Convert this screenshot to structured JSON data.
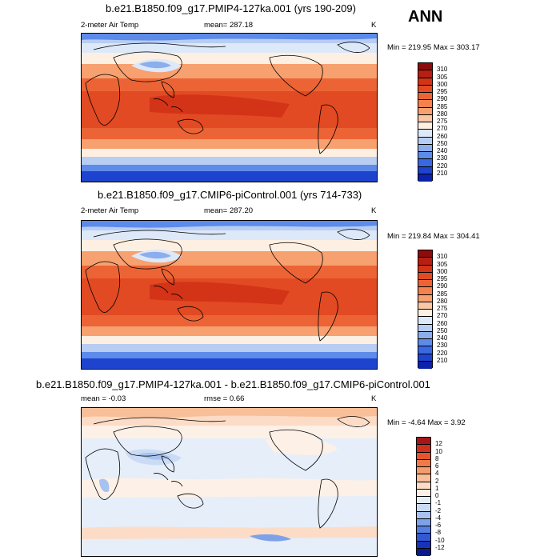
{
  "season": "ANN",
  "panels": [
    {
      "title": "b.e21.B1850.f09_g17.PMIP4-127ka.001 (yrs 190-209)",
      "left": "2-meter Air Temp",
      "center": "mean= 287.18",
      "units": "K",
      "minmax": "Min = 219.95 Max = 303.17",
      "ticks": [
        "310",
        "305",
        "300",
        "295",
        "290",
        "285",
        "280",
        "275",
        "270",
        "260",
        "250",
        "240",
        "230",
        "220",
        "210"
      ],
      "colors": [
        "#8c0c0c",
        "#b81e12",
        "#d33418",
        "#e24a23",
        "#ec6435",
        "#f3824f",
        "#f7a070",
        "#fac7a6",
        "#fdf0e2",
        "#dde8f8",
        "#b8cdf2",
        "#8caeec",
        "#5d8bea",
        "#3a68e2",
        "#1e44cf",
        "#0c22a8"
      ]
    },
    {
      "title": "b.e21.B1850.f09_g17.CMIP6-piControl.001 (yrs 714-733)",
      "left": "2-meter Air Temp",
      "center": "mean= 287.20",
      "units": "K",
      "minmax": "Min = 219.84 Max = 304.41",
      "ticks": [
        "310",
        "305",
        "300",
        "295",
        "290",
        "285",
        "280",
        "275",
        "270",
        "260",
        "250",
        "240",
        "230",
        "220",
        "210"
      ],
      "colors": [
        "#8c0c0c",
        "#b81e12",
        "#d33418",
        "#e24a23",
        "#ec6435",
        "#f3824f",
        "#f7a070",
        "#fac7a6",
        "#fdf0e2",
        "#dde8f8",
        "#b8cdf2",
        "#8caeec",
        "#5d8bea",
        "#3a68e2",
        "#1e44cf",
        "#0c22a8"
      ]
    },
    {
      "title": "b.e21.B1850.f09_g17.PMIP4-127ka.001 - b.e21.B1850.f09_g17.CMIP6-piControl.001",
      "left": "mean =  -0.03",
      "center": "rmse =   0.66",
      "units": "K",
      "minmax": "Min =  -4.64 Max =   3.92",
      "ticks": [
        "12",
        "10",
        "8",
        "6",
        "4",
        "2",
        "1",
        "0",
        "-1",
        "-2",
        "-4",
        "-6",
        "-8",
        "-10",
        "-12"
      ],
      "colors": [
        "#a8141a",
        "#d0301e",
        "#e5542c",
        "#ef7a48",
        "#f59c6c",
        "#f9bf99",
        "#fcdcc6",
        "#fdf0e6",
        "#e6eefa",
        "#cadcf5",
        "#a7c2ef",
        "#7ea2e8",
        "#557fe0",
        "#3059d3",
        "#1634b8",
        "#0a1a8a"
      ]
    }
  ]
}
